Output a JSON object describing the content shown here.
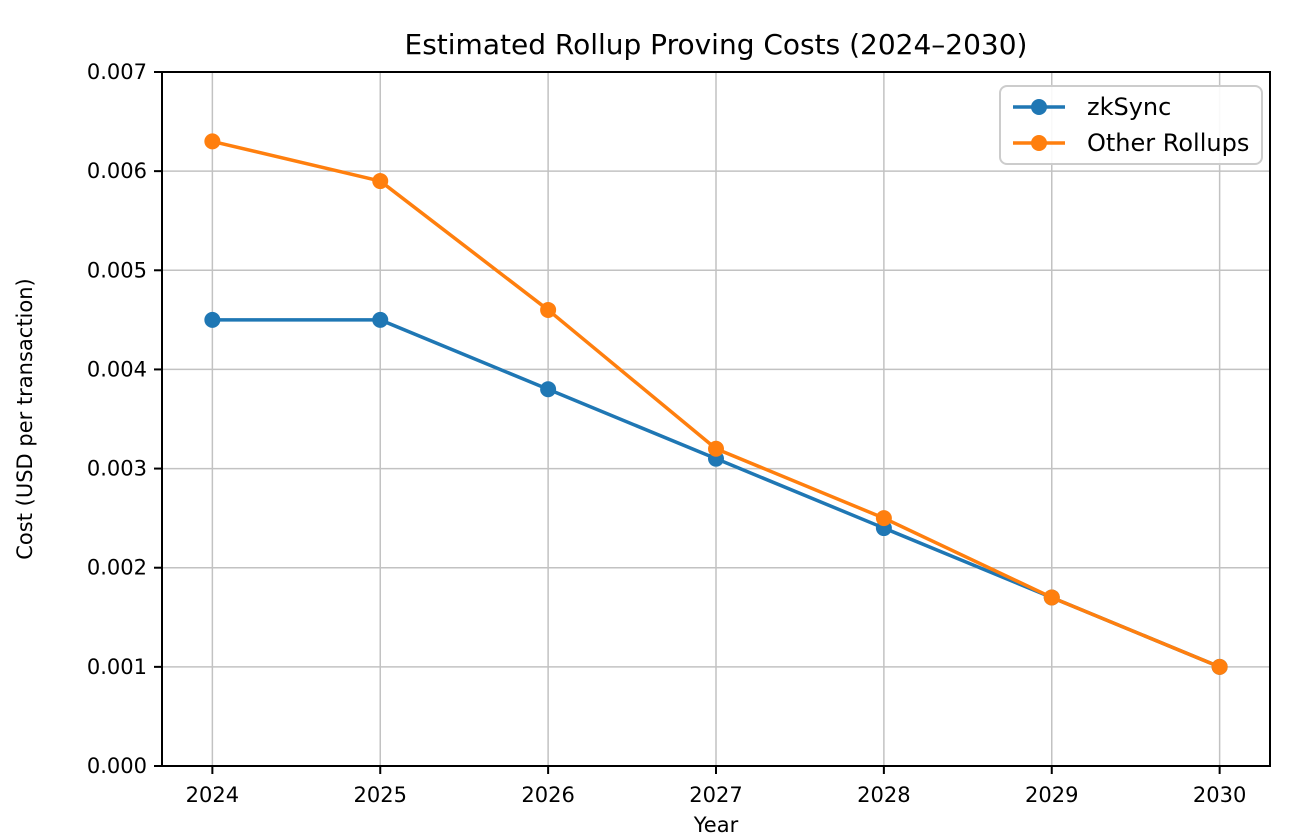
{
  "chart_data": {
    "type": "line",
    "title": "Estimated Rollup Proving Costs (2024–2030)",
    "xlabel": "Year",
    "ylabel": "Cost (USD per transaction)",
    "categories": [
      2024,
      2025,
      2026,
      2027,
      2028,
      2029,
      2030
    ],
    "series": [
      {
        "name": "zkSync",
        "color": "#1f77b4",
        "marker": "circle",
        "values": [
          0.0045,
          0.0045,
          0.0038,
          0.0031,
          0.0024,
          0.0017,
          0.001
        ]
      },
      {
        "name": "Other Rollups",
        "color": "#ff7f0e",
        "marker": "circle",
        "values": [
          0.0063,
          0.0059,
          0.0046,
          0.0032,
          0.0025,
          0.0017,
          0.001
        ]
      }
    ],
    "xlim": [
      2023.7,
      2030.3
    ],
    "ylim": [
      0,
      0.007
    ],
    "yticks": [
      0,
      0.001,
      0.002,
      0.003,
      0.004,
      0.005,
      0.006,
      0.007
    ],
    "ytick_decimals": 3,
    "grid": true,
    "grid_color": "#c2c2c2",
    "axis_color": "#000000",
    "background": "#ffffff",
    "legend_position": "upper right"
  }
}
